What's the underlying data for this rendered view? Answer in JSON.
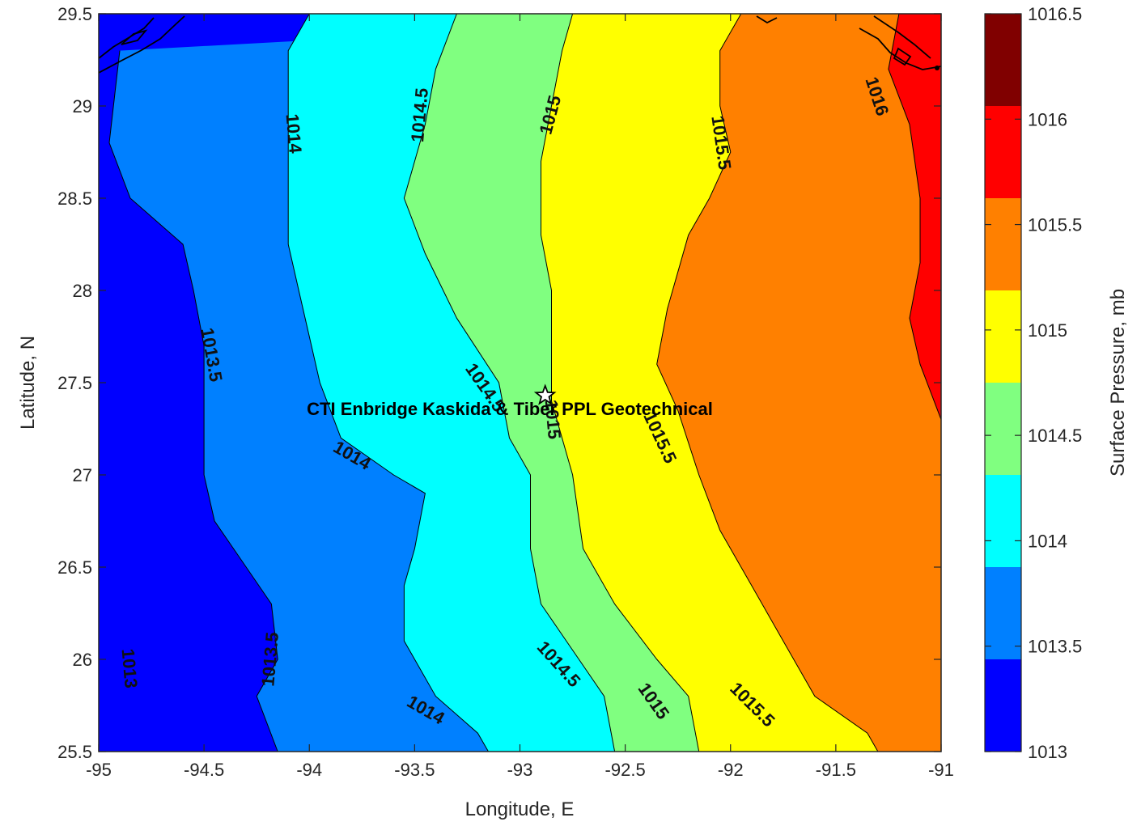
{
  "chart_data": {
    "type": "heatmap",
    "subtype": "filled-contour-map",
    "title": "",
    "xlabel": "Longitude, E",
    "ylabel": "Latitude, N",
    "xlim": [
      -95,
      -91
    ],
    "ylim": [
      25.5,
      29.5
    ],
    "xticks": [
      -95,
      -94.5,
      -94,
      -93.5,
      -93,
      -92.5,
      -92,
      -91.5,
      -91
    ],
    "yticks": [
      25.5,
      26,
      26.5,
      27,
      27.5,
      28,
      28.5,
      29,
      29.5
    ],
    "grid": false,
    "colorbar": {
      "label": "Surface Pressure, mb",
      "levels": [
        1013,
        1013.5,
        1014,
        1014.5,
        1015,
        1015.5,
        1016,
        1016.5
      ],
      "colors": [
        "#0000ff",
        "#0080ff",
        "#00ffff",
        "#80ff80",
        "#ffff00",
        "#ff8000",
        "#ff0000",
        "#800000"
      ]
    },
    "contours": [
      {
        "level": 1013,
        "points": [
          [
            -94.9,
            29.3
          ],
          [
            -94.95,
            28.8
          ],
          [
            -94.85,
            28.5
          ],
          [
            -94.6,
            28.25
          ],
          [
            -94.55,
            28.0
          ],
          [
            -94.5,
            27.7
          ],
          [
            -94.5,
            27.35
          ],
          [
            -94.5,
            27.0
          ],
          [
            -94.45,
            26.75
          ],
          [
            -94.3,
            26.5
          ],
          [
            -94.18,
            26.3
          ],
          [
            -94.15,
            26.0
          ],
          [
            -94.25,
            25.8
          ],
          [
            -94.15,
            25.5
          ]
        ]
      },
      {
        "level": 1013.5,
        "points": [
          [
            -94.0,
            29.5
          ],
          [
            -94.1,
            29.3
          ],
          [
            -94.1,
            29.0
          ],
          [
            -94.1,
            28.7
          ],
          [
            -94.1,
            28.5
          ],
          [
            -94.1,
            28.25
          ],
          [
            -94.05,
            28.0
          ],
          [
            -93.95,
            27.5
          ],
          [
            -93.85,
            27.2
          ],
          [
            -93.6,
            27.0
          ],
          [
            -93.45,
            26.9
          ],
          [
            -93.5,
            26.6
          ],
          [
            -93.55,
            26.4
          ],
          [
            -93.55,
            26.1
          ],
          [
            -93.4,
            25.8
          ],
          [
            -93.2,
            25.6
          ],
          [
            -93.15,
            25.5
          ]
        ]
      },
      {
        "level": 1014,
        "points": [
          [
            -93.3,
            29.5
          ],
          [
            -93.4,
            29.2
          ],
          [
            -93.45,
            28.9
          ],
          [
            -93.5,
            28.7
          ],
          [
            -93.55,
            28.5
          ],
          [
            -93.45,
            28.2
          ],
          [
            -93.3,
            27.85
          ],
          [
            -93.1,
            27.5
          ],
          [
            -93.05,
            27.2
          ],
          [
            -92.95,
            27.0
          ],
          [
            -92.95,
            26.6
          ],
          [
            -92.9,
            26.3
          ],
          [
            -92.75,
            26.05
          ],
          [
            -92.6,
            25.8
          ],
          [
            -92.55,
            25.5
          ]
        ]
      },
      {
        "level": 1014.5,
        "points": [
          [
            -92.75,
            29.5
          ],
          [
            -92.8,
            29.3
          ],
          [
            -92.85,
            29.0
          ],
          [
            -92.9,
            28.7
          ],
          [
            -92.9,
            28.3
          ],
          [
            -92.85,
            28.0
          ],
          [
            -92.85,
            27.7
          ],
          [
            -92.85,
            27.4
          ],
          [
            -92.75,
            27.0
          ],
          [
            -92.7,
            26.6
          ],
          [
            -92.55,
            26.3
          ],
          [
            -92.35,
            26.0
          ],
          [
            -92.2,
            25.8
          ],
          [
            -92.15,
            25.5
          ]
        ]
      },
      {
        "level": 1015,
        "points": [
          [
            -91.95,
            29.5
          ],
          [
            -92.05,
            29.3
          ],
          [
            -92.05,
            29.0
          ],
          [
            -92.0,
            28.75
          ],
          [
            -92.1,
            28.5
          ],
          [
            -92.2,
            28.3
          ],
          [
            -92.3,
            27.9
          ],
          [
            -92.35,
            27.6
          ],
          [
            -92.25,
            27.35
          ],
          [
            -92.15,
            27.0
          ],
          [
            -92.05,
            26.7
          ],
          [
            -91.9,
            26.4
          ],
          [
            -91.75,
            26.1
          ],
          [
            -91.6,
            25.8
          ],
          [
            -91.35,
            25.6
          ],
          [
            -91.3,
            25.5
          ]
        ]
      },
      {
        "level": 1015.5,
        "points": [
          [
            -91.2,
            29.5
          ],
          [
            -91.25,
            29.2
          ],
          [
            -91.15,
            28.9
          ],
          [
            -91.1,
            28.5
          ],
          [
            -91.1,
            28.15
          ],
          [
            -91.15,
            27.85
          ],
          [
            -91.1,
            27.6
          ],
          [
            -91.0,
            27.3
          ]
        ]
      }
    ],
    "contour_labels": [
      {
        "text": "1013",
        "lon": -94.86,
        "lat": 25.95,
        "angle": 85
      },
      {
        "text": "1013.5",
        "lon": -94.47,
        "lat": 27.65,
        "angle": 80
      },
      {
        "text": "1013.5",
        "lon": -94.18,
        "lat": 26.0,
        "angle": -85
      },
      {
        "text": "1014",
        "lon": -94.08,
        "lat": 28.85,
        "angle": 85
      },
      {
        "text": "1014",
        "lon": -93.8,
        "lat": 27.1,
        "angle": 30
      },
      {
        "text": "1014",
        "lon": -93.45,
        "lat": 25.72,
        "angle": 30
      },
      {
        "text": "1014.5",
        "lon": -93.47,
        "lat": 28.95,
        "angle": -85
      },
      {
        "text": "1014.5",
        "lon": -93.17,
        "lat": 27.47,
        "angle": 55
      },
      {
        "text": "1014.5",
        "lon": -92.82,
        "lat": 25.97,
        "angle": 48
      },
      {
        "text": "1015",
        "lon": -92.85,
        "lat": 28.95,
        "angle": -75
      },
      {
        "text": "1015",
        "lon": -92.85,
        "lat": 27.3,
        "angle": 85
      },
      {
        "text": "1015",
        "lon": -92.37,
        "lat": 25.77,
        "angle": 55
      },
      {
        "text": "1015.5",
        "lon": -92.05,
        "lat": 28.8,
        "angle": 82
      },
      {
        "text": "1015.5",
        "lon": -92.34,
        "lat": 27.2,
        "angle": 65
      },
      {
        "text": "1015.5",
        "lon": -91.9,
        "lat": 25.75,
        "angle": 45
      },
      {
        "text": "1016",
        "lon": -91.31,
        "lat": 29.05,
        "angle": 72
      }
    ],
    "site": {
      "label": "CTI Enbridge  Kaskida & Tiber PPL Geotechnical",
      "lon": -92.88,
      "lat": 27.43
    }
  }
}
